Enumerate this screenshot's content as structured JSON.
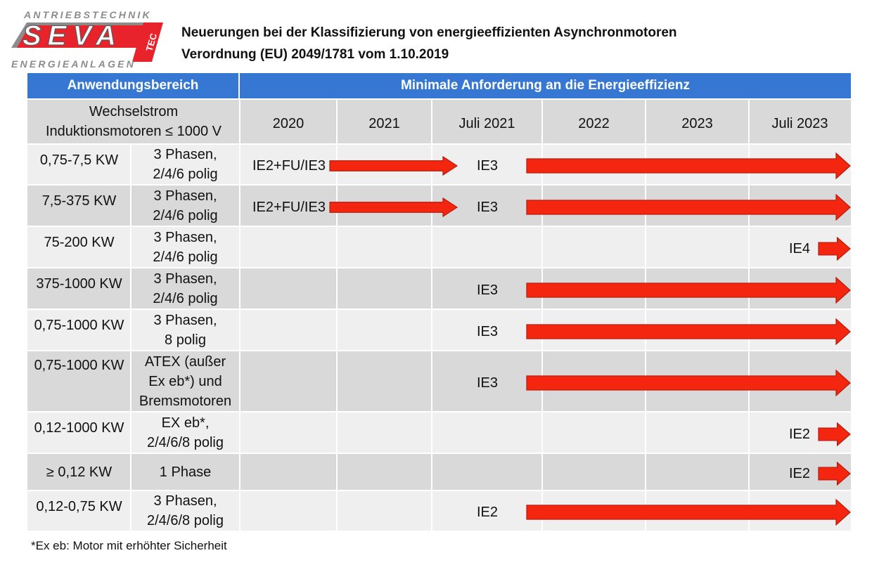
{
  "logo": {
    "top_text": "ANTRIEBSTECHNIK",
    "brand": "SEVA",
    "tec": "TEC",
    "bottom_text": "ENERGIEANLAGEN",
    "colors": {
      "brand_red": "#e8232b",
      "letter_white": "#ffffff",
      "gray": "#8c8c8c"
    }
  },
  "title_line1": "Neuerungen bei der Klassifizierung von energieeffizienten Asynchronmotoren",
  "title_line2": "Verordnung (EU) 2049/1781 vom 1.10.2019",
  "header": {
    "left": "Anwendungsbereich",
    "right": "Minimale Anforderung an die Energieeffizienz"
  },
  "subheader": {
    "left_line1": "Wechselstrom",
    "left_line2": "Induktionsmotoren ≤ 1000 V",
    "years": [
      "2020",
      "2021",
      "Juli 2021",
      "2022",
      "2023",
      "Juli 2023"
    ]
  },
  "rows": [
    {
      "power": "0,75-7,5 KW",
      "type_lines": [
        "3 Phasen,",
        "2/4/6 polig"
      ],
      "start_label": "IE2+FU/IE3",
      "start_arrow_to": "Juli 2021",
      "label": "IE3",
      "from": "Juli 2021"
    },
    {
      "power": "7,5-375 KW",
      "type_lines": [
        "3 Phasen,",
        "2/4/6 polig"
      ],
      "start_label": "IE2+FU/IE3",
      "start_arrow_to": "Juli 2021",
      "label": "IE3",
      "from": "Juli 2021"
    },
    {
      "power": "75-200 KW",
      "type_lines": [
        "3 Phasen,",
        "2/4/6 polig"
      ],
      "label": "IE4",
      "from": "Juli 2023"
    },
    {
      "power": "375-1000 KW",
      "type_lines": [
        "3 Phasen,",
        "2/4/6 polig"
      ],
      "label": "IE3",
      "from": "Juli 2021"
    },
    {
      "power": "0,75-1000 KW",
      "type_lines": [
        "3 Phasen,",
        "8 polig"
      ],
      "label": "IE3",
      "from": "Juli 2021"
    },
    {
      "power": "0,75-1000 KW",
      "type_lines": [
        "ATEX (außer",
        "Ex eb*) und",
        "Bremsmotoren"
      ],
      "label": "IE3",
      "from": "Juli 2021"
    },
    {
      "power": "0,12-1000 KW",
      "type_lines": [
        "EX eb*,",
        "2/4/6/8 polig"
      ],
      "label": "IE2",
      "from": "Juli 2023"
    },
    {
      "power": "≥ 0,12 KW",
      "type_lines": [
        "1 Phase"
      ],
      "label": "IE2",
      "from": "Juli 2023"
    },
    {
      "power": "0,12-0,75 KW",
      "type_lines": [
        "3 Phasen,",
        "2/4/6/8 polig"
      ],
      "label": "IE2",
      "from": "Juli 2021"
    }
  ],
  "footnote": "*Ex eb: Motor mit erhöhter Sicherheit",
  "colors": {
    "header_blue": "#3677d4",
    "row_dark": "#d9d9d9",
    "row_light": "#efefef",
    "arrow_red": "#f5260f",
    "arrow_outline": "#b31c0d"
  }
}
